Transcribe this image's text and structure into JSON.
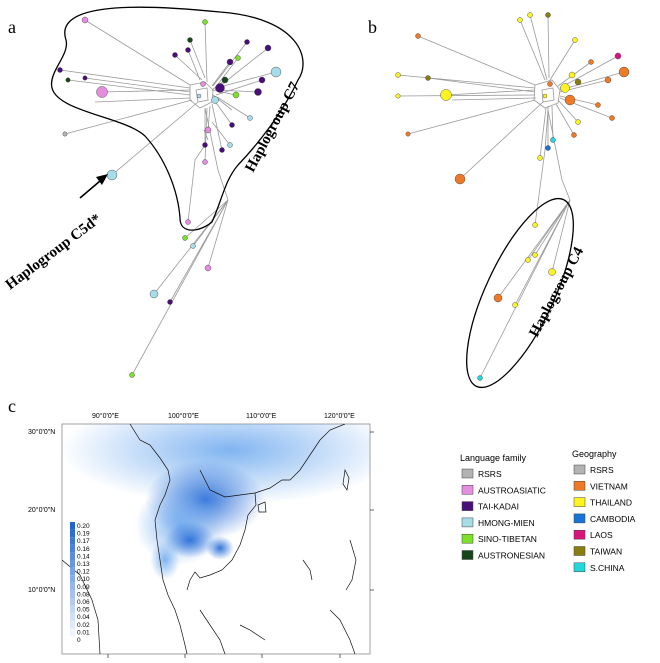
{
  "panels": {
    "a": "a",
    "b": "b",
    "c": "c"
  },
  "haplogroups": {
    "c7": "Haplogroup C7",
    "c5d": "Haplogroup C5d*",
    "c4": "Haplogroup C4"
  },
  "map": {
    "lon_labels": [
      "90°0'0\"E",
      "100°0'0\"E",
      "110°0'0\"E",
      "120°0'0\"E"
    ],
    "lat_labels": [
      "30°0'0\"N",
      "20°0'0\"N",
      "10°0'0\"N"
    ],
    "scale_values": [
      "0.20",
      "0.19",
      "0.17",
      "0.16",
      "0.14",
      "0.13",
      "0.12",
      "0.10",
      "0.09",
      "0.08",
      "0.06",
      "0.05",
      "0.04",
      "0.02",
      "0.01",
      "0"
    ]
  },
  "legend_language": {
    "title": "Language family",
    "items": [
      {
        "label": "RSRS",
        "color": "#b3b3b3"
      },
      {
        "label": "AUSTROASIATIC",
        "color": "#e58ee0"
      },
      {
        "label": "TAI-KADAI",
        "color": "#4a0e7a"
      },
      {
        "label": "HMONG-MIEN",
        "color": "#a6dde8"
      },
      {
        "label": "SINO-TIBETAN",
        "color": "#7fe02c"
      },
      {
        "label": "AUSTRONESIAN",
        "color": "#16461a"
      }
    ]
  },
  "legend_geography": {
    "title": "Geography",
    "items": [
      {
        "label": "RSRS",
        "color": "#b3b3b3"
      },
      {
        "label": "VIETNAM",
        "color": "#ee7a27"
      },
      {
        "label": "THAILAND",
        "color": "#fdf320"
      },
      {
        "label": "CAMBODIA",
        "color": "#1a74d6"
      },
      {
        "label": "LAOS",
        "color": "#d8157a"
      },
      {
        "label": "TAIWAN",
        "color": "#8a7d12"
      },
      {
        "label": "S.CHINA",
        "color": "#22d8dd"
      }
    ]
  }
}
